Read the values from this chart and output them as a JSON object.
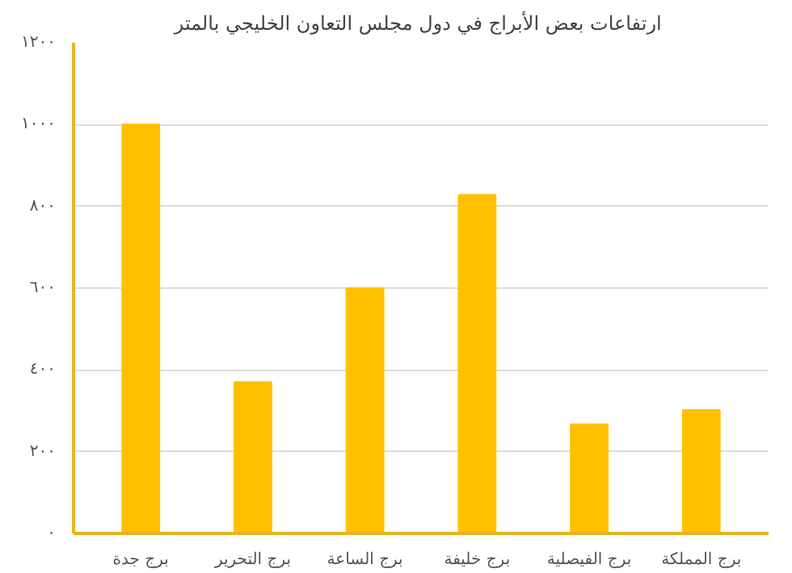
{
  "chart_data": {
    "type": "bar",
    "title": "ارتفاعات بعض الأبراج  في دول مجلس التعاون الخليجي بالمتر",
    "categories": [
      "برج جدة",
      "برج التحرير",
      "برج الساعة",
      "برج خليفة",
      "برج الفيصلية",
      "برج المملكة"
    ],
    "values": [
      1000,
      370,
      600,
      828,
      267,
      302
    ],
    "color": "#ffc000",
    "ylim": [
      0,
      1200
    ],
    "yticks": [
      {
        "value": 0,
        "label": "٠"
      },
      {
        "value": 200,
        "label": "٢٠٠"
      },
      {
        "value": 400,
        "label": "٤٠٠"
      },
      {
        "value": 600,
        "label": "٦٠٠"
      },
      {
        "value": 800,
        "label": "٨٠٠"
      },
      {
        "value": 1000,
        "label": "١٠٠٠"
      },
      {
        "value": 1200,
        "label": "١٢٠٠"
      }
    ],
    "grid": "y"
  }
}
